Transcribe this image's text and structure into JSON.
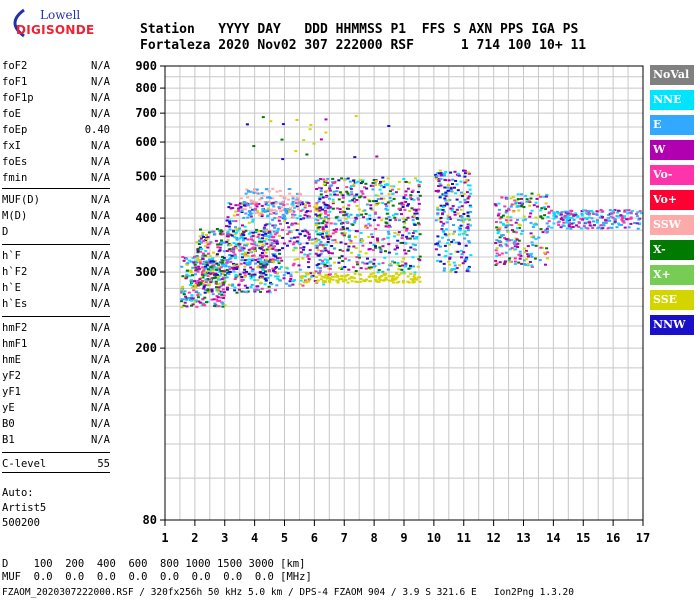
{
  "logo": {
    "line1": "Lowell",
    "line2": "DIGISONDE"
  },
  "header": {
    "row1": "Station   YYYY DAY   DDD HHMMSS P1  FFS S AXN PPS IGA PS",
    "row2": "Fortaleza 2020 Nov02 307 222000 RSF      1 714 100 10+ 11"
  },
  "parameters": [
    {
      "name": "foF2",
      "value": "N/A"
    },
    {
      "name": "foF1",
      "value": "N/A"
    },
    {
      "name": "foF1p",
      "value": "N/A"
    },
    {
      "name": "foE",
      "value": "N/A"
    },
    {
      "name": "foEp",
      "value": "0.40"
    },
    {
      "name": "fxI",
      "value": "N/A"
    },
    {
      "name": "foEs",
      "value": "N/A"
    },
    {
      "name": "fmin",
      "value": "N/A"
    },
    {
      "name": "MUF(D)",
      "value": "N/A"
    },
    {
      "name": "M(D)",
      "value": "N/A"
    },
    {
      "name": "D",
      "value": "N/A"
    },
    {
      "name": "h`F",
      "value": "N/A"
    },
    {
      "name": "h`F2",
      "value": "N/A"
    },
    {
      "name": "h`E",
      "value": "N/A"
    },
    {
      "name": "h`Es",
      "value": "N/A"
    },
    {
      "name": "hmF2",
      "value": "N/A"
    },
    {
      "name": "hmF1",
      "value": "N/A"
    },
    {
      "name": "hmE",
      "value": "N/A"
    },
    {
      "name": "yF2",
      "value": "N/A"
    },
    {
      "name": "yF1",
      "value": "N/A"
    },
    {
      "name": "yE",
      "value": "N/A"
    },
    {
      "name": "B0",
      "value": "N/A"
    },
    {
      "name": "B1",
      "value": "N/A"
    },
    {
      "name": "C-level",
      "value": "55"
    }
  ],
  "auto": {
    "l1": "Auto:",
    "l2": "Artist5",
    "l3": "500200"
  },
  "legend": [
    {
      "label": "NoVal",
      "color": "#808080"
    },
    {
      "label": "NNE",
      "color": "#00e5ff"
    },
    {
      "label": "E",
      "color": "#33a8ff"
    },
    {
      "label": "W",
      "color": "#b000b0"
    },
    {
      "label": "Vo-",
      "color": "#ff33aa"
    },
    {
      "label": "Vo+",
      "color": "#ff0033"
    },
    {
      "label": "SSW",
      "color": "#ffaaaa"
    },
    {
      "label": "X-",
      "color": "#007a00"
    },
    {
      "label": "X+",
      "color": "#77cc55"
    },
    {
      "label": "SSE",
      "color": "#d4d400"
    },
    {
      "label": "NNW",
      "color": "#1a10c8"
    }
  ],
  "chart_data": {
    "type": "scatter",
    "xlabel": "",
    "ylabel": "",
    "xlim": [
      1,
      17
    ],
    "ylim": [
      80,
      900
    ],
    "y_scale": "log",
    "x_ticks": [
      1,
      2,
      3,
      4,
      5,
      6,
      7,
      8,
      9,
      10,
      11,
      12,
      13,
      14,
      15,
      16,
      17
    ],
    "y_ticks": [
      80,
      200,
      300,
      400,
      500,
      600,
      700,
      800,
      900
    ],
    "grid": true,
    "clusters": [
      {
        "x_range": [
          1.5,
          3.0
        ],
        "y_range": [
          250,
          330
        ],
        "colors": [
          "#b000b0",
          "#33a8ff",
          "#d4d400",
          "#ff33aa",
          "#00e5ff",
          "#007a00"
        ],
        "n": 260
      },
      {
        "x_range": [
          2.0,
          4.8
        ],
        "y_range": [
          270,
          380
        ],
        "colors": [
          "#b000b0",
          "#33a8ff",
          "#d4d400",
          "#ff33aa",
          "#00e5ff",
          "#007a00",
          "#1a10c8"
        ],
        "n": 420
      },
      {
        "x_range": [
          3.0,
          6.5
        ],
        "y_range": [
          280,
          440
        ],
        "colors": [
          "#b000b0",
          "#33a8ff",
          "#d4d400",
          "#ff33aa",
          "#00e5ff",
          "#1a10c8"
        ],
        "n": 420
      },
      {
        "x_range": [
          3.5,
          5.5
        ],
        "y_range": [
          400,
          470
        ],
        "colors": [
          "#33a8ff",
          "#ffaaaa"
        ],
        "n": 120
      },
      {
        "x_range": [
          5.5,
          9.5
        ],
        "y_range": [
          285,
          300
        ],
        "colors": [
          "#d4d400"
        ],
        "n": 140
      },
      {
        "x_range": [
          6.0,
          9.5
        ],
        "y_range": [
          300,
          500
        ],
        "colors": [
          "#1a10c8",
          "#b000b0",
          "#d4d400",
          "#33a8ff",
          "#ff33aa",
          "#00e5ff",
          "#007a00"
        ],
        "n": 560
      },
      {
        "x_range": [
          10.0,
          11.2
        ],
        "y_range": [
          300,
          520
        ],
        "colors": [
          "#1a10c8",
          "#33a8ff",
          "#d4d400",
          "#b000b0",
          "#00e5ff"
        ],
        "n": 240
      },
      {
        "x_range": [
          12.0,
          13.8
        ],
        "y_range": [
          310,
          460
        ],
        "colors": [
          "#00e5ff",
          "#33a8ff",
          "#b000b0",
          "#ff33aa",
          "#007a00",
          "#d4d400"
        ],
        "n": 230
      },
      {
        "x_range": [
          13.8,
          16.9
        ],
        "y_range": [
          380,
          420
        ],
        "colors": [
          "#b000b0",
          "#33a8ff",
          "#ff33aa",
          "#00e5ff"
        ],
        "n": 220
      },
      {
        "x_range": [
          3.5,
          8.5
        ],
        "y_range": [
          550,
          700
        ],
        "colors": [
          "#d4d400",
          "#b000b0",
          "#1a10c8",
          "#007a00"
        ],
        "n": 22
      }
    ]
  },
  "range_row": {
    "label": "D",
    "values": "100  200  400  600  800 1000 1500 3000 [km]"
  },
  "muf_row": {
    "label": "MUF",
    "values": "0.0  0.0  0.0  0.0  0.0  0.0  0.0  0.0 [MHz]"
  },
  "footer": "FZAOM_2020307222000.RSF / 320fx256h 50 kHz 5.0 km / DPS-4 FZAOM 904 / 3.9 S 321.6 E   Ion2Png 1.3.20"
}
